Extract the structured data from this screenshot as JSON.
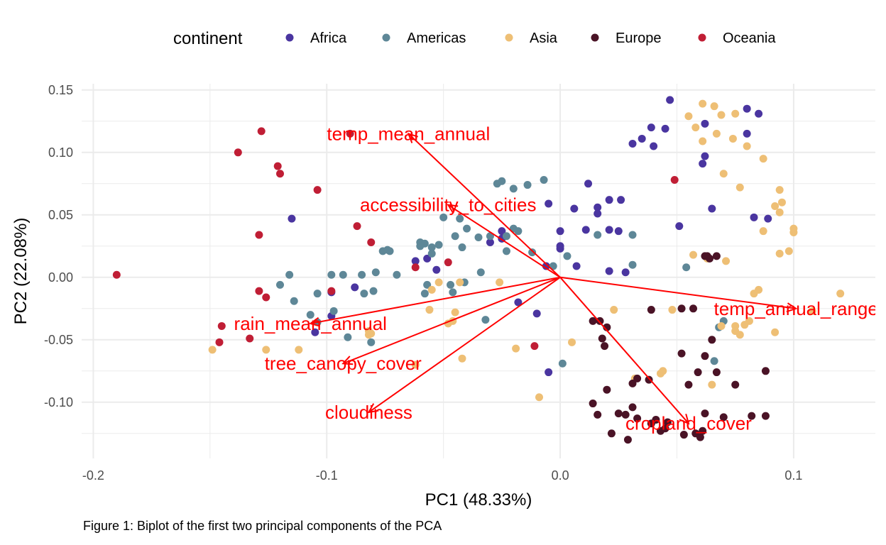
{
  "chart_data": {
    "type": "scatter",
    "subtype": "pca-biplot",
    "title": "",
    "xlabel": "PC1 (48.33%)",
    "ylabel": "PC2 (22.08%)",
    "xlim": [
      -0.205,
      0.135
    ],
    "ylim": [
      -0.145,
      0.155
    ],
    "x_ticks": [
      -0.2,
      -0.1,
      0.0,
      0.1
    ],
    "x_tick_labels": [
      "-0.2",
      "-0.1",
      "0.0",
      "0.1"
    ],
    "y_ticks": [
      -0.1,
      -0.05,
      0.0,
      0.05,
      0.1,
      0.15
    ],
    "y_tick_labels": [
      "-0.10",
      "-0.05",
      "0.00",
      "0.05",
      "0.10",
      "0.15"
    ],
    "grid": true,
    "legend": {
      "title": "continent",
      "position": "top",
      "entries": [
        "Africa",
        "Americas",
        "Asia",
        "Europe",
        "Oceania"
      ]
    },
    "colors": {
      "Africa": "#4a35a0",
      "Americas": "#5e8797",
      "Asia": "#eebf75",
      "Europe": "#4a1326",
      "Oceania": "#c01e35",
      "arrow": "#ff0000"
    },
    "loadings": [
      {
        "name": "temp_mean_annual",
        "x": -0.065,
        "y": 0.115
      },
      {
        "name": "accessibility_to_cities",
        "x": -0.048,
        "y": 0.058
      },
      {
        "name": "temp_annual_range",
        "x": 0.101,
        "y": -0.025
      },
      {
        "name": "rain_mean_annual",
        "x": -0.107,
        "y": -0.037
      },
      {
        "name": "tree_canopy_cover",
        "x": -0.093,
        "y": -0.069
      },
      {
        "name": "cloudiness",
        "x": -0.082,
        "y": -0.108
      },
      {
        "name": "cropland_cover",
        "x": 0.055,
        "y": -0.117
      }
    ],
    "series": [
      {
        "name": "Africa",
        "points": [
          [
            0.047,
            0.142
          ],
          [
            0.062,
            0.123
          ],
          [
            0.08,
            0.135
          ],
          [
            0.085,
            0.131
          ],
          [
            0.039,
            0.12
          ],
          [
            0.045,
            0.119
          ],
          [
            0.035,
            0.111
          ],
          [
            0.031,
            0.107
          ],
          [
            0.04,
            0.105
          ],
          [
            0.08,
            0.115
          ],
          [
            0.062,
            0.097
          ],
          [
            0.061,
            0.091
          ],
          [
            0.012,
            0.075
          ],
          [
            0.021,
            0.062
          ],
          [
            0.026,
            0.062
          ],
          [
            0.016,
            0.056
          ],
          [
            0.006,
            0.055
          ],
          [
            0.016,
            0.051
          ],
          [
            -0.005,
            0.059
          ],
          [
            0.065,
            0.055
          ],
          [
            0.083,
            0.048
          ],
          [
            0.089,
            0.047
          ],
          [
            0.051,
            0.041
          ],
          [
            0.011,
            0.038
          ],
          [
            0.021,
            0.038
          ],
          [
            0.025,
            0.037
          ],
          [
            0.0,
            0.037
          ],
          [
            0.0,
            0.023
          ],
          [
            0.0,
            0.025
          ],
          [
            -0.025,
            0.037
          ],
          [
            -0.025,
            0.031
          ],
          [
            -0.03,
            0.028
          ],
          [
            -0.025,
            0.031
          ],
          [
            -0.062,
            0.013
          ],
          [
            -0.057,
            0.015
          ],
          [
            -0.053,
            0.006
          ],
          [
            -0.006,
            0.009
          ],
          [
            0.007,
            0.009
          ],
          [
            0.021,
            0.005
          ],
          [
            0.028,
            0.004
          ],
          [
            -0.018,
            -0.02
          ],
          [
            -0.01,
            -0.029
          ],
          [
            -0.005,
            -0.076
          ],
          [
            -0.098,
            -0.031
          ],
          [
            -0.105,
            -0.044
          ],
          [
            -0.115,
            0.047
          ],
          [
            -0.088,
            -0.008
          ],
          [
            -0.098,
            -0.012
          ]
        ]
      },
      {
        "name": "Americas",
        "points": [
          [
            -0.027,
            0.075
          ],
          [
            -0.025,
            0.077
          ],
          [
            -0.014,
            0.074
          ],
          [
            -0.007,
            0.078
          ],
          [
            -0.02,
            0.071
          ],
          [
            -0.05,
            0.048
          ],
          [
            -0.043,
            0.047
          ],
          [
            -0.04,
            0.039
          ],
          [
            -0.02,
            0.039
          ],
          [
            -0.018,
            0.037
          ],
          [
            -0.045,
            0.033
          ],
          [
            -0.03,
            0.033
          ],
          [
            -0.023,
            0.033
          ],
          [
            -0.06,
            0.028
          ],
          [
            -0.058,
            0.027
          ],
          [
            -0.055,
            0.024
          ],
          [
            -0.042,
            0.024
          ],
          [
            -0.073,
            0.021
          ],
          [
            -0.074,
            0.022
          ],
          [
            -0.06,
            0.025
          ],
          [
            -0.052,
            0.026
          ],
          [
            -0.035,
            0.032
          ],
          [
            -0.076,
            0.021
          ],
          [
            -0.055,
            0.019
          ],
          [
            -0.023,
            0.021
          ],
          [
            -0.012,
            0.02
          ],
          [
            -0.098,
            0.002
          ],
          [
            -0.104,
            -0.013
          ],
          [
            -0.093,
            0.002
          ],
          [
            -0.084,
            -0.013
          ],
          [
            -0.08,
            -0.011
          ],
          [
            -0.079,
            0.004
          ],
          [
            -0.085,
            0.002
          ],
          [
            -0.07,
            0.002
          ],
          [
            -0.057,
            -0.006
          ],
          [
            -0.058,
            -0.013
          ],
          [
            -0.047,
            -0.006
          ],
          [
            -0.041,
            -0.004
          ],
          [
            -0.034,
            0.004
          ],
          [
            -0.116,
            0.002
          ],
          [
            -0.12,
            -0.006
          ],
          [
            -0.114,
            -0.019
          ],
          [
            -0.081,
            -0.052
          ],
          [
            -0.091,
            -0.048
          ],
          [
            -0.097,
            -0.027
          ],
          [
            -0.104,
            -0.036
          ],
          [
            -0.107,
            -0.03
          ],
          [
            -0.032,
            -0.034
          ],
          [
            0.001,
            -0.069
          ],
          [
            0.016,
            0.034
          ],
          [
            0.031,
            0.034
          ],
          [
            0.054,
            0.008
          ],
          [
            0.031,
            0.01
          ],
          [
            0.003,
            0.017
          ],
          [
            0.068,
            -0.04
          ],
          [
            0.07,
            -0.035
          ],
          [
            0.066,
            -0.067
          ],
          [
            -0.003,
            0.009
          ],
          [
            -0.046,
            -0.012
          ]
        ]
      },
      {
        "name": "Asia",
        "points": [
          [
            0.061,
            0.139
          ],
          [
            0.066,
            0.137
          ],
          [
            0.069,
            0.13
          ],
          [
            0.075,
            0.131
          ],
          [
            0.055,
            0.129
          ],
          [
            0.058,
            0.12
          ],
          [
            0.067,
            0.115
          ],
          [
            0.061,
            0.109
          ],
          [
            0.074,
            0.111
          ],
          [
            0.08,
            0.105
          ],
          [
            0.087,
            0.095
          ],
          [
            0.07,
            0.083
          ],
          [
            0.094,
            0.07
          ],
          [
            0.077,
            0.072
          ],
          [
            0.092,
            0.057
          ],
          [
            0.094,
            0.052
          ],
          [
            0.095,
            0.06
          ],
          [
            0.1,
            0.036
          ],
          [
            0.1,
            0.039
          ],
          [
            0.087,
            0.037
          ],
          [
            0.098,
            0.021
          ],
          [
            0.057,
            0.018
          ],
          [
            0.063,
            0.015
          ],
          [
            0.071,
            0.013
          ],
          [
            0.094,
            0.019
          ],
          [
            0.085,
            -0.01
          ],
          [
            0.083,
            -0.013
          ],
          [
            0.12,
            -0.013
          ],
          [
            0.108,
            -0.027
          ],
          [
            0.081,
            -0.035
          ],
          [
            0.079,
            -0.038
          ],
          [
            0.075,
            -0.039
          ],
          [
            0.069,
            -0.039
          ],
          [
            0.075,
            -0.043
          ],
          [
            0.077,
            -0.046
          ],
          [
            0.092,
            -0.044
          ],
          [
            0.065,
            -0.086
          ],
          [
            0.043,
            -0.077
          ],
          [
            0.044,
            -0.075
          ],
          [
            0.032,
            -0.081
          ],
          [
            0.023,
            -0.026
          ],
          [
            -0.055,
            -0.01
          ],
          [
            -0.052,
            -0.004
          ],
          [
            -0.026,
            -0.004
          ],
          [
            -0.043,
            -0.004
          ],
          [
            -0.045,
            -0.028
          ],
          [
            -0.056,
            -0.026
          ],
          [
            -0.048,
            -0.037
          ],
          [
            -0.046,
            -0.035
          ],
          [
            -0.062,
            -0.07
          ],
          [
            -0.042,
            -0.065
          ],
          [
            -0.019,
            -0.057
          ],
          [
            -0.009,
            -0.096
          ],
          [
            0.005,
            -0.052
          ],
          [
            -0.082,
            -0.046
          ],
          [
            -0.082,
            -0.043
          ],
          [
            -0.081,
            -0.045
          ],
          [
            -0.112,
            -0.058
          ],
          [
            -0.126,
            -0.058
          ],
          [
            -0.149,
            -0.058
          ],
          [
            0.048,
            -0.026
          ]
        ]
      },
      {
        "name": "Europe",
        "points": [
          [
            0.062,
            0.017
          ],
          [
            0.063,
            0.017
          ],
          [
            0.064,
            0.015
          ],
          [
            0.067,
            0.017
          ],
          [
            0.039,
            -0.026
          ],
          [
            0.052,
            -0.025
          ],
          [
            0.057,
            -0.025
          ],
          [
            0.065,
            -0.05
          ],
          [
            0.062,
            -0.063
          ],
          [
            0.052,
            -0.061
          ],
          [
            0.059,
            -0.076
          ],
          [
            0.067,
            -0.076
          ],
          [
            0.075,
            -0.086
          ],
          [
            0.088,
            -0.075
          ],
          [
            0.055,
            -0.086
          ],
          [
            0.018,
            -0.049
          ],
          [
            0.019,
            -0.055
          ],
          [
            0.014,
            -0.035
          ],
          [
            0.017,
            -0.035
          ],
          [
            0.02,
            -0.04
          ],
          [
            0.02,
            -0.09
          ],
          [
            0.031,
            -0.085
          ],
          [
            0.033,
            -0.081
          ],
          [
            0.038,
            -0.082
          ],
          [
            0.014,
            -0.101
          ],
          [
            0.025,
            -0.109
          ],
          [
            0.028,
            -0.11
          ],
          [
            0.033,
            -0.113
          ],
          [
            0.039,
            -0.117
          ],
          [
            0.043,
            -0.123
          ],
          [
            0.053,
            -0.126
          ],
          [
            0.058,
            -0.125
          ],
          [
            0.06,
            -0.128
          ],
          [
            0.061,
            -0.123
          ],
          [
            0.045,
            -0.121
          ],
          [
            0.046,
            -0.116
          ],
          [
            0.07,
            -0.112
          ],
          [
            0.082,
            -0.111
          ],
          [
            0.088,
            -0.111
          ],
          [
            0.062,
            -0.109
          ],
          [
            0.022,
            -0.125
          ],
          [
            0.029,
            -0.13
          ],
          [
            0.041,
            -0.114
          ],
          [
            0.016,
            -0.11
          ],
          [
            0.031,
            -0.104
          ]
        ]
      },
      {
        "name": "Oceania",
        "points": [
          [
            -0.19,
            0.002
          ],
          [
            -0.145,
            -0.039
          ],
          [
            -0.146,
            -0.052
          ],
          [
            -0.133,
            -0.049
          ],
          [
            -0.129,
            -0.011
          ],
          [
            -0.126,
            -0.016
          ],
          [
            -0.129,
            0.034
          ],
          [
            -0.121,
            0.089
          ],
          [
            -0.12,
            0.083
          ],
          [
            -0.138,
            0.1
          ],
          [
            -0.128,
            0.117
          ],
          [
            -0.09,
            0.115
          ],
          [
            -0.104,
            0.07
          ],
          [
            -0.087,
            0.041
          ],
          [
            -0.081,
            0.028
          ],
          [
            -0.098,
            -0.011
          ],
          [
            -0.048,
            0.012
          ],
          [
            -0.062,
            0.008
          ],
          [
            -0.011,
            -0.055
          ],
          [
            0.049,
            0.078
          ]
        ]
      }
    ]
  },
  "figure": {
    "caption": "Figure 1: Biplot of the first two principal components of the PCA"
  }
}
